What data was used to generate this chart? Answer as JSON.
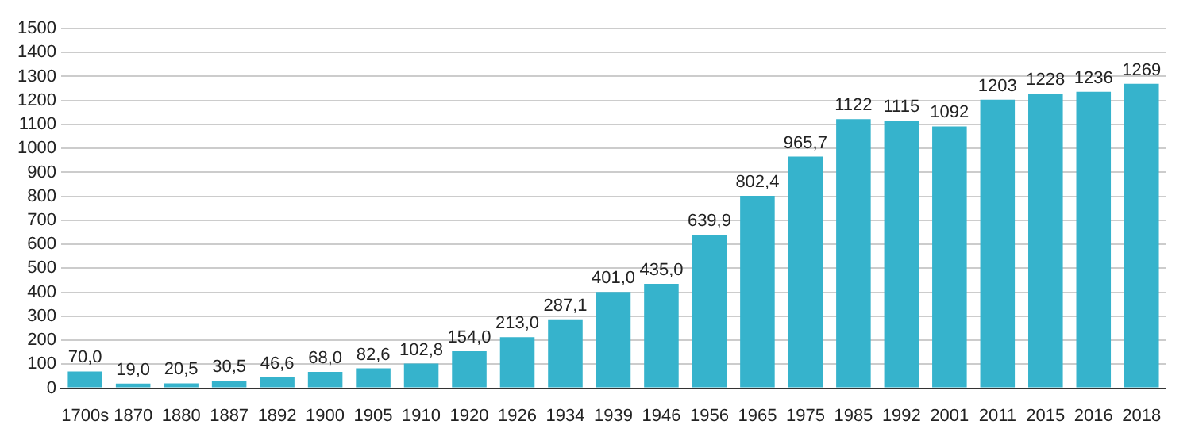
{
  "chart_data": {
    "type": "bar",
    "categories": [
      "1700s",
      "1870",
      "1880",
      "1887",
      "1892",
      "1900",
      "1905",
      "1910",
      "1920",
      "1926",
      "1934",
      "1939",
      "1946",
      "1956",
      "1965",
      "1975",
      "1985",
      "1992",
      "2001",
      "2011",
      "2015",
      "2016",
      "2018"
    ],
    "values": [
      70,
      19,
      20.5,
      30.5,
      46.6,
      68,
      82.6,
      102.8,
      154,
      213,
      287.1,
      401,
      435,
      639.9,
      802.4,
      965.7,
      1122,
      1115,
      1092,
      1203,
      1228,
      1236,
      1269
    ],
    "value_labels": [
      "70,0",
      "19,0",
      "20,5",
      "30,5",
      "46,6",
      "68,0",
      "82,6",
      "102,8",
      "154,0",
      "213,0",
      "287,1",
      "401,0",
      "435,0",
      "639,9",
      "802,4",
      "965,7",
      "1122",
      "1115",
      "1092",
      "1203",
      "1228",
      "1236",
      "1269"
    ],
    "color": "#36b3cc",
    "ylim": [
      0,
      1500
    ],
    "yticks": [
      0,
      100,
      200,
      300,
      400,
      500,
      600,
      700,
      800,
      900,
      1000,
      1100,
      1200,
      1300,
      1400,
      1500
    ],
    "grid": "y"
  }
}
